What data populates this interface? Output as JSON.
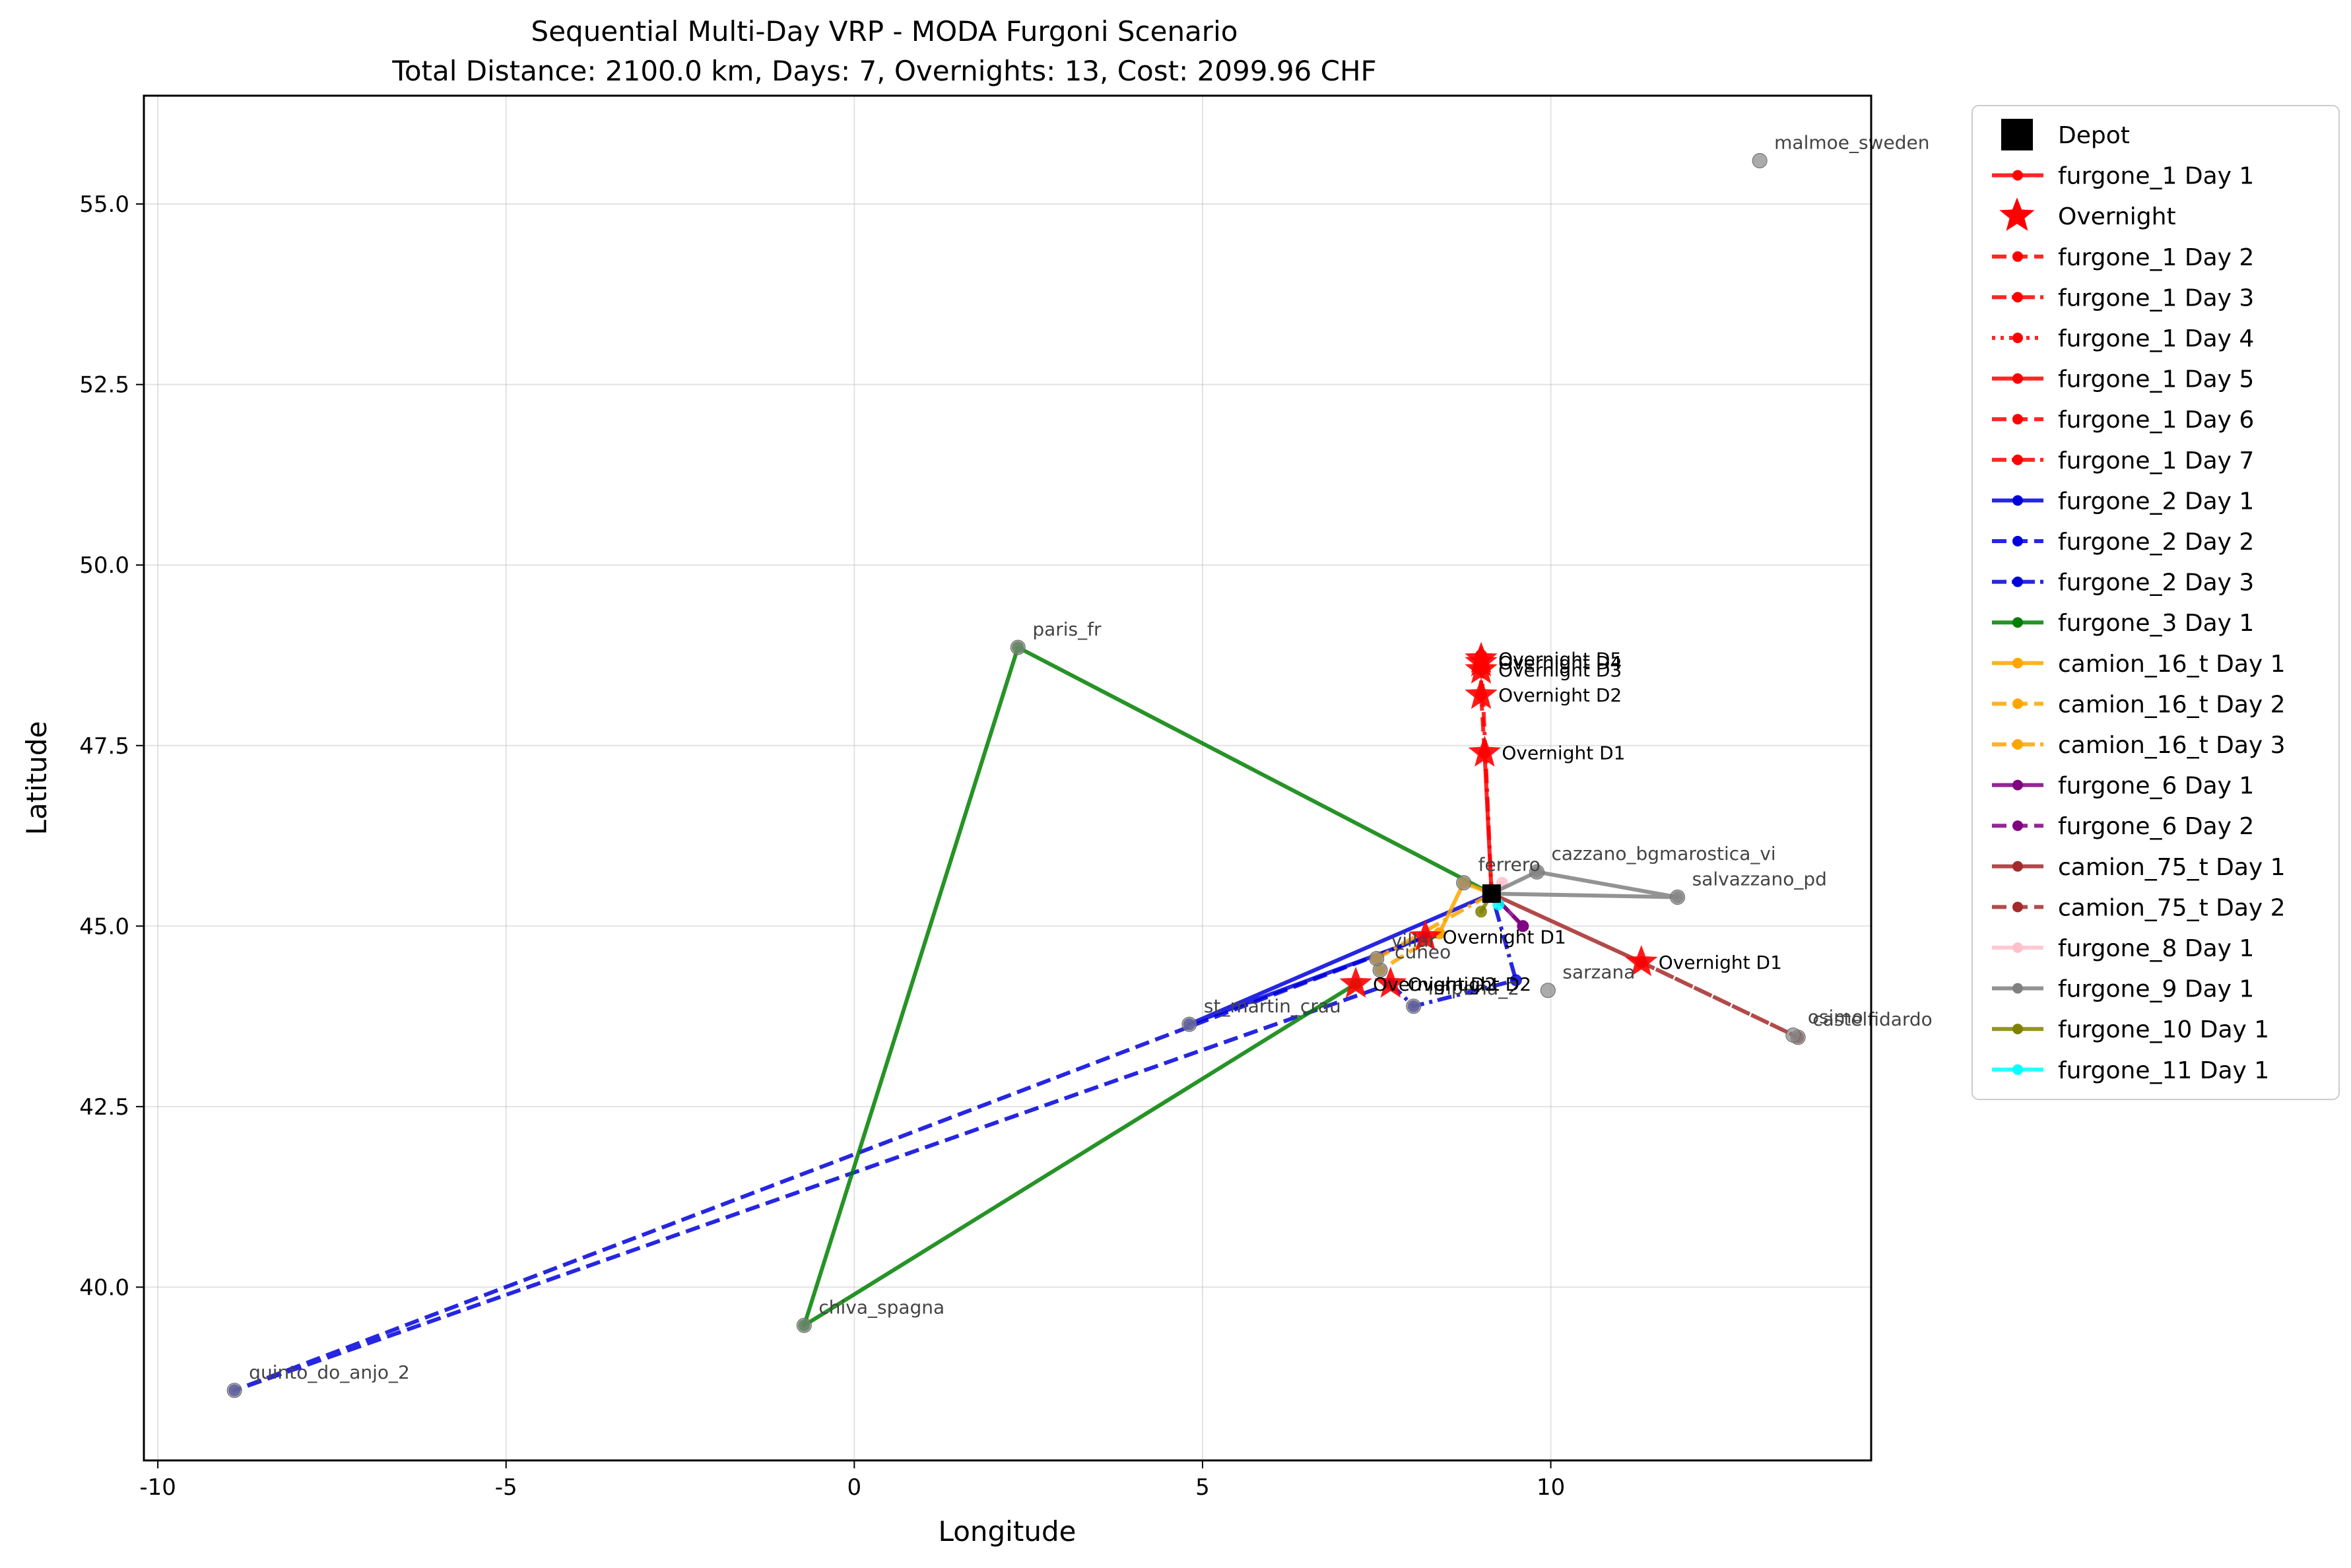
{
  "chart_data": {
    "type": "line",
    "title": "Sequential Multi-Day VRP - MODA Furgoni Scenario",
    "subtitle": "Total Distance: 2100.0 km, Days: 7, Overnights: 13, Cost: 2099.96 CHF",
    "xlabel": "Longitude",
    "ylabel": "Latitude",
    "xlim": [
      -10.2,
      14.6
    ],
    "ylim": [
      37.6,
      56.5
    ],
    "x_ticks": [
      -10,
      -5,
      0,
      5,
      10
    ],
    "y_ticks": [
      40.0,
      42.5,
      45.0,
      47.5,
      50.0,
      52.5,
      55.0
    ],
    "grid": true,
    "legend_position": "outside-right",
    "depot": {
      "x": 9.15,
      "y": 45.45
    },
    "locations": [
      {
        "name": "malmoe_sweden",
        "x": 13.0,
        "y": 55.6
      },
      {
        "name": "paris_fr",
        "x": 2.35,
        "y": 48.86
      },
      {
        "name": "chiva_spagna",
        "x": -0.72,
        "y": 39.47
      },
      {
        "name": "quinto_do_anjo_2",
        "x": -8.9,
        "y": 38.57
      },
      {
        "name": "st_martin_crau",
        "x": 4.81,
        "y": 43.64
      },
      {
        "name": "imperia_2",
        "x": 8.03,
        "y": 43.89
      },
      {
        "name": "cuneo",
        "x": 7.55,
        "y": 44.39
      },
      {
        "name": "villar",
        "x": 7.5,
        "y": 44.55
      },
      {
        "name": "castelfidardo",
        "x": 13.55,
        "y": 43.46
      },
      {
        "name": "osimo",
        "x": 13.48,
        "y": 43.49
      },
      {
        "name": "salvazzano_pd",
        "x": 11.82,
        "y": 45.4
      },
      {
        "name": "cazzano_bgmarostica_vi",
        "x": 9.8,
        "y": 45.75
      },
      {
        "name": "ferrero",
        "x": 8.75,
        "y": 45.6
      },
      {
        "name": "sarzana",
        "x": 9.96,
        "y": 44.11
      }
    ],
    "overnights": [
      {
        "label": "Overnight D1",
        "x": 9.05,
        "y": 47.4
      },
      {
        "label": "Overnight D2",
        "x": 9.0,
        "y": 48.2
      },
      {
        "label": "Overnight D3",
        "x": 9.0,
        "y": 48.55
      },
      {
        "label": "Overnight D4",
        "x": 9.0,
        "y": 48.65
      },
      {
        "label": "Overnight D5",
        "x": 9.0,
        "y": 48.7
      },
      {
        "label": "Overnight D1",
        "x": 11.3,
        "y": 44.5
      },
      {
        "label": "Overnight D1",
        "x": 8.2,
        "y": 44.85
      },
      {
        "label": "Overnight D2",
        "x": 7.7,
        "y": 44.2
      },
      {
        "label": "Overnight D2",
        "x": 7.2,
        "y": 44.2
      }
    ],
    "series": [
      {
        "name": "furgone_1 Day 1",
        "color": "#ff0000",
        "dash": "solid",
        "x": [
          9.15,
          9.05
        ],
        "y": [
          45.45,
          47.4
        ]
      },
      {
        "name": "furgone_1 Day 2",
        "color": "#ff0000",
        "dash": "dashed",
        "x": [
          9.05,
          9.0
        ],
        "y": [
          47.4,
          48.2
        ]
      },
      {
        "name": "furgone_1 Day 3",
        "color": "#ff0000",
        "dash": "dashdot",
        "x": [
          9.0,
          9.0
        ],
        "y": [
          48.2,
          48.55
        ]
      },
      {
        "name": "furgone_1 Day 4",
        "color": "#ff0000",
        "dash": "dotted",
        "x": [
          9.0,
          9.0
        ],
        "y": [
          48.55,
          48.65
        ]
      },
      {
        "name": "furgone_1 Day 5",
        "color": "#ff0000",
        "dash": "solid",
        "x": [
          9.0,
          9.0
        ],
        "y": [
          48.65,
          48.7
        ]
      },
      {
        "name": "furgone_1 Day 6",
        "color": "#ff0000",
        "dash": "dashed",
        "x": [
          9.0,
          9.0
        ],
        "y": [
          48.7,
          48.75
        ]
      },
      {
        "name": "furgone_1 Day 7",
        "color": "#ff0000",
        "dash": "dashdot",
        "x": [
          9.0,
          9.15
        ],
        "y": [
          48.75,
          45.45
        ]
      },
      {
        "name": "furgone_2 Day 1",
        "color": "#0000dd",
        "dash": "solid",
        "x": [
          9.15,
          4.81,
          8.2
        ],
        "y": [
          45.45,
          43.64,
          44.85
        ]
      },
      {
        "name": "furgone_2 Day 2",
        "color": "#0000dd",
        "dash": "dashed",
        "x": [
          8.2,
          -8.9,
          7.7
        ],
        "y": [
          44.85,
          38.57,
          44.2
        ]
      },
      {
        "name": "furgone_2 Day 3",
        "color": "#0000dd",
        "dash": "dashdot",
        "x": [
          7.7,
          8.03,
          9.5,
          9.15
        ],
        "y": [
          44.2,
          43.89,
          44.25,
          45.45
        ]
      },
      {
        "name": "furgone_3 Day 1",
        "color": "#008000",
        "dash": "solid",
        "x": [
          9.15,
          2.35,
          -0.72,
          7.2
        ],
        "y": [
          45.45,
          48.86,
          39.47,
          44.2
        ]
      },
      {
        "name": "camion_16_t Day 1",
        "color": "#ffa500",
        "dash": "solid",
        "x": [
          9.15,
          8.75,
          8.4
        ],
        "y": [
          45.45,
          45.6,
          44.9
        ]
      },
      {
        "name": "camion_16_t Day 2",
        "color": "#ffa500",
        "dash": "dashed",
        "x": [
          8.4,
          7.55,
          7.5
        ],
        "y": [
          44.9,
          44.39,
          44.55
        ]
      },
      {
        "name": "camion_16_t Day 3",
        "color": "#ffa500",
        "dash": "dashdot",
        "x": [
          7.5,
          9.15
        ],
        "y": [
          44.55,
          45.45
        ]
      },
      {
        "name": "furgone_6 Day 1",
        "color": "#800080",
        "dash": "solid",
        "x": [
          9.15,
          9.6
        ],
        "y": [
          45.45,
          45.0
        ]
      },
      {
        "name": "furgone_6 Day 2",
        "color": "#800080",
        "dash": "dashed",
        "x": [
          9.6,
          9.15
        ],
        "y": [
          45.0,
          45.45
        ]
      },
      {
        "name": "camion_75_t Day 1",
        "color": "#a52a2a",
        "dash": "solid",
        "x": [
          9.15,
          11.3
        ],
        "y": [
          45.45,
          44.5
        ]
      },
      {
        "name": "camion_75_t Day 2",
        "color": "#a52a2a",
        "dash": "dashed",
        "x": [
          11.3,
          13.55,
          11.3
        ],
        "y": [
          44.5,
          43.46,
          44.5
        ]
      },
      {
        "name": "furgone_8 Day 1",
        "color": "#ffc0cb",
        "dash": "solid",
        "x": [
          9.15,
          9.3,
          9.15
        ],
        "y": [
          45.45,
          45.6,
          45.45
        ]
      },
      {
        "name": "furgone_9 Day 1",
        "color": "#808080",
        "dash": "solid",
        "x": [
          9.15,
          9.8,
          11.82,
          9.15
        ],
        "y": [
          45.45,
          45.75,
          45.4,
          45.45
        ]
      },
      {
        "name": "furgone_10 Day 1",
        "color": "#808000",
        "dash": "solid",
        "x": [
          9.15,
          9.0,
          9.15
        ],
        "y": [
          45.45,
          45.2,
          45.45
        ]
      },
      {
        "name": "furgone_11 Day 1",
        "color": "#00ffff",
        "dash": "solid",
        "x": [
          9.15,
          9.25,
          9.15
        ],
        "y": [
          45.45,
          45.3,
          45.45
        ]
      }
    ],
    "legend": {
      "depot_label": "Depot",
      "overnight_label": "Overnight"
    }
  }
}
